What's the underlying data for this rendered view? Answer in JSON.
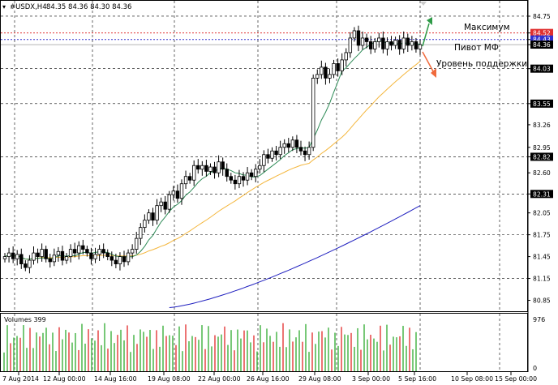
{
  "header": {
    "symbol": "#USDX,H4",
    "ohlc": "84.35 84.36 84.30 84.36"
  },
  "colors": {
    "background": "#ffffff",
    "grid": "#000000",
    "candle": "#000000",
    "ma_fast": "#2e8b57",
    "ma_mid": "#f4b63c",
    "ma_slow": "#1f1fbf",
    "level_max": "#e03030",
    "level_pivot": "#3030d0",
    "arrow_up": "#2e9a47",
    "arrow_down": "#f06a3c",
    "vol_up": "#55bb55",
    "vol_down": "#e85050"
  },
  "annotations": {
    "max_label": "Максимум",
    "pivot_label": "Пивот МФ",
    "support_label": "Уровень поддержки"
  },
  "price_axis": {
    "ticks": [
      "84.75",
      "84.52",
      "84.43",
      "84.36",
      "84.03",
      "83.55",
      "83.26",
      "82.95",
      "82.82",
      "82.60",
      "82.31",
      "82.05",
      "81.75",
      "81.45",
      "81.15",
      "80.85"
    ],
    "highlighted": [
      "84.52",
      "84.43",
      "84.36",
      "84.03",
      "83.55",
      "82.82",
      "82.31"
    ],
    "levels": {
      "max": 84.52,
      "pivot": 84.43,
      "current": 84.36
    }
  },
  "volume_panel": {
    "label": "Volumes 399",
    "max_label": "976",
    "zero_label": "0"
  },
  "time_axis": {
    "labels": [
      "7 Aug 2014",
      "12 Aug 00:00",
      "14 Aug 16:00",
      "19 Aug 08:00",
      "22 Aug 00:00",
      "26 Aug 16:00",
      "29 Aug 08:00",
      "3 Sep 00:00",
      "5 Sep 16:00",
      "10 Sep 08:00",
      "15 Sep 00:00"
    ]
  },
  "chart_data": {
    "type": "candlestick",
    "timeframe": "H4",
    "ylim": [
      80.7,
      84.95
    ],
    "closes": [
      81.45,
      81.5,
      81.42,
      81.48,
      81.35,
      81.3,
      81.4,
      81.5,
      81.45,
      81.55,
      81.42,
      81.38,
      81.47,
      81.52,
      81.4,
      81.45,
      81.55,
      81.5,
      81.6,
      81.55,
      81.5,
      81.42,
      81.48,
      81.55,
      81.5,
      81.45,
      81.4,
      81.35,
      81.45,
      81.38,
      81.5,
      81.55,
      81.7,
      81.85,
      81.95,
      82.05,
      81.95,
      82.15,
      82.2,
      82.1,
      82.3,
      82.35,
      82.25,
      82.45,
      82.55,
      82.5,
      82.7,
      82.65,
      82.7,
      82.62,
      82.68,
      82.6,
      82.75,
      82.65,
      82.55,
      82.5,
      82.45,
      82.55,
      82.5,
      82.6,
      82.55,
      82.65,
      82.7,
      82.85,
      82.8,
      82.9,
      82.85,
      82.95,
      83.0,
      82.95,
      83.05,
      82.95,
      82.9,
      82.85,
      82.95,
      83.9,
      83.95,
      84.05,
      83.9,
      83.95,
      84.1,
      84.0,
      84.15,
      84.25,
      84.45,
      84.55,
      84.35,
      84.45,
      84.4,
      84.3,
      84.4,
      84.45,
      84.3,
      84.4,
      84.35,
      84.42,
      84.3,
      84.45,
      84.35,
      84.4,
      84.3,
      84.36
    ],
    "ma_fast_last": 84.3,
    "ma_mid_last": 83.9,
    "ma_slow_last": 82.15,
    "volume_max": 976,
    "volume_last": 399
  }
}
